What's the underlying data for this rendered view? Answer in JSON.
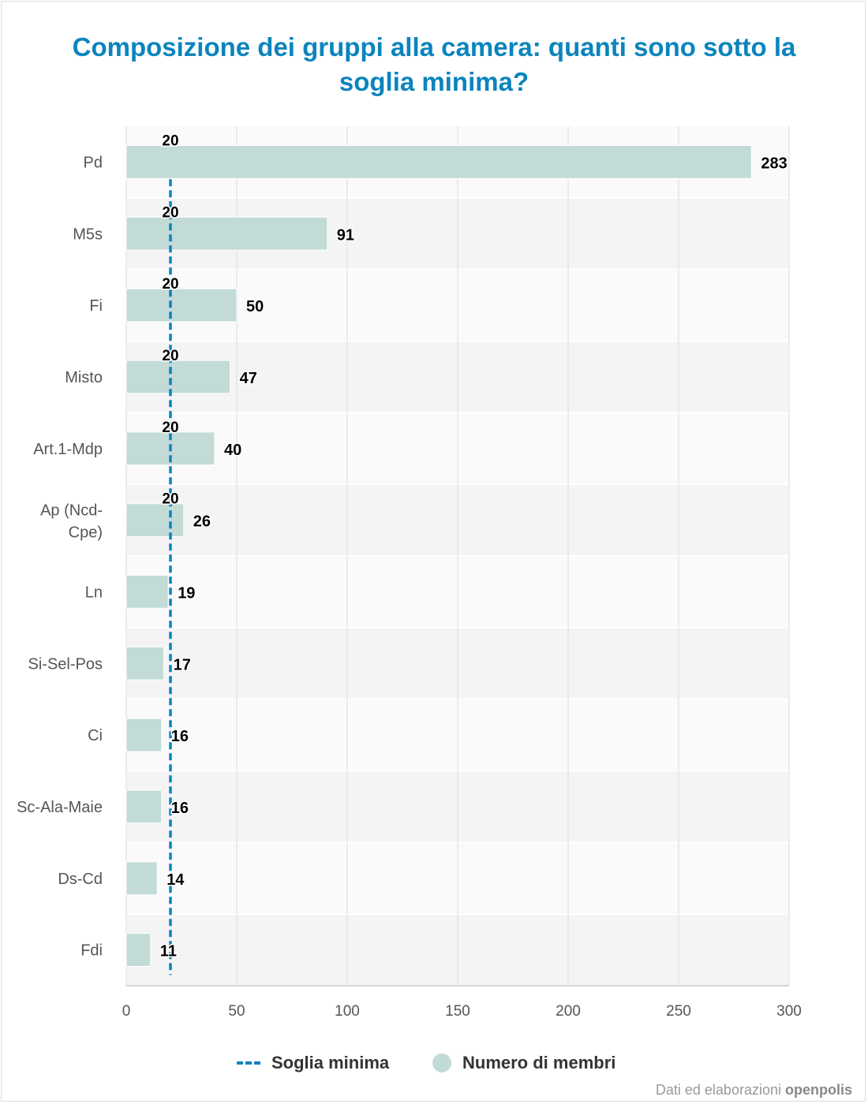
{
  "title": "Composizione dei gruppi alla camera: quanti sono sotto la soglia minima?",
  "legend": {
    "threshold_label": "Soglia minima",
    "members_label": "Numero di membri"
  },
  "credit": {
    "prefix": "Dati ed elaborazioni",
    "brand": "openpolis"
  },
  "colors": {
    "title": "#0b84bd",
    "bar": "#c3dbd7",
    "threshold": "#0b84bd"
  },
  "chart_data": {
    "type": "bar",
    "orientation": "horizontal",
    "categories": [
      "Pd",
      "M5s",
      "Fi",
      "Misto",
      "Art.1-Mdp",
      "Ap (Ncd-Cpe)",
      "Ln",
      "Si-Sel-Pos",
      "Ci",
      "Sc-Ala-Maie",
      "Ds-Cd",
      "Fdi"
    ],
    "series": [
      {
        "name": "Numero di membri",
        "values": [
          283,
          91,
          50,
          47,
          40,
          26,
          19,
          17,
          16,
          16,
          14,
          11
        ]
      },
      {
        "name": "Soglia minima",
        "values": [
          20,
          20,
          20,
          20,
          20,
          20,
          20,
          20,
          20,
          20,
          20,
          20
        ]
      }
    ],
    "xlim": [
      0,
      300
    ],
    "xticks": [
      0,
      50,
      100,
      150,
      200,
      250,
      300
    ],
    "grid": true,
    "legend_position": "bottom"
  }
}
